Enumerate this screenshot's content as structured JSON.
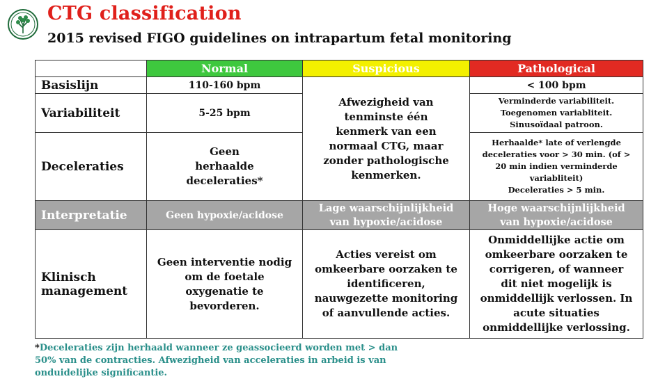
{
  "header": {
    "title": "CTG classification",
    "subtitle": "2015 revised FIGO guidelines on intrapartum fetal monitoring"
  },
  "table": {
    "headers": {
      "normal": "Normal",
      "suspicious": "Suspicious",
      "pathological": "Pathological"
    },
    "rows": {
      "basislijn": {
        "label": "Basislijn",
        "normal": "110-160 bpm",
        "pathological": "< 100 bpm"
      },
      "variabiliteit": {
        "label": "Variabiliteit",
        "normal": "5-25 bpm",
        "pathological": [
          "Verminderde variabiliteit.",
          "Toegenomen variabliteit.",
          "Sinusoïdaal patroon."
        ]
      },
      "suspicious_text": [
        "Afwezigheid van",
        "tenminste één",
        "kenmerk van een",
        "normaal CTG, maar",
        "zonder pathologische",
        "kenmerken."
      ],
      "deceleraties": {
        "label": "Deceleraties",
        "normal": [
          "Geen",
          "herhaalde",
          "deceleraties*"
        ],
        "pathological": [
          "Herhaalde* late of verlengde",
          "deceleraties voor > 30 min. (of >",
          "20 min indien verminderde",
          "variabliteit)",
          "Deceleraties > 5 min."
        ]
      },
      "interpretatie": {
        "label": "Interpretatie",
        "normal": "Geen hypoxie/acidose",
        "suspicious": [
          "Lage waarschijnlijkheid",
          "van hypoxie/acidose"
        ],
        "pathological": [
          "Hoge waarschijnlijkheid",
          "van hypoxie/acidose"
        ]
      },
      "klinisch": {
        "label": [
          "Klinisch",
          "management"
        ],
        "normal": [
          "Geen interventie nodig",
          "om de foetale",
          "oxygenatie te",
          "bevorderen."
        ],
        "suspicious": [
          "Acties vereist om",
          "omkeerbare oorzaken te",
          "identificeren,",
          "nauwgezette monitoring",
          "of aanvullende acties."
        ],
        "pathological": [
          "Onmiddellijke actie om",
          "omkeerbare oorzaken te",
          "corrigeren, of wanneer",
          "dit niet mogelijk is",
          "onmiddellijk verlossen. In",
          "acute situaties",
          "onmiddellijke verlossing."
        ]
      }
    }
  },
  "footnote": {
    "star": "*",
    "lines": [
      "Deceleraties zijn herhaald wanneer ze geassocieerd worden met > dan",
      "50% van de contracties. Afwezigheid van acceleraties in arbeid is van",
      "onduidelijke significantie."
    ]
  },
  "colors": {
    "title": "#e0201b",
    "normal": "#3ec83e",
    "suspicious": "#f3f000",
    "pathological": "#e22a22",
    "interpretatie_row": "#a6a6a6",
    "footnote": "#2a8f8a"
  },
  "icons": {
    "logo": "tree-logo-icon"
  }
}
